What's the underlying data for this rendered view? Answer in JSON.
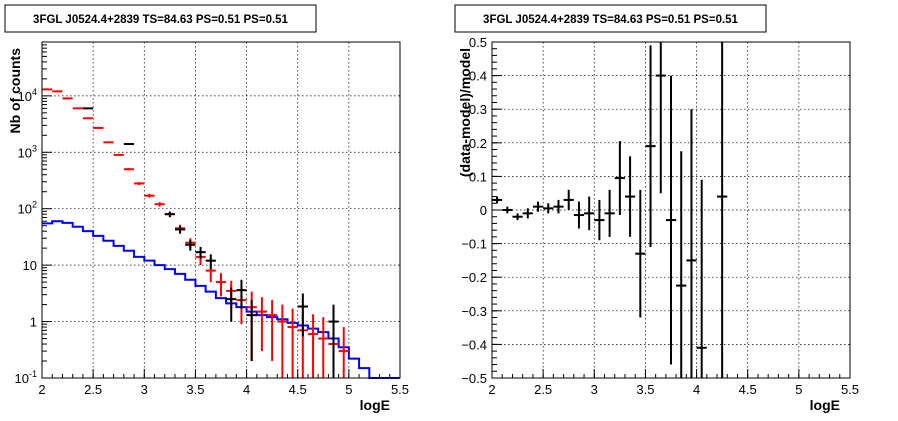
{
  "chart_data": [
    {
      "type": "histogram",
      "title": "3FGL J0524.4+2839 TS=84.63 PS=0.51 PS=0.51",
      "xlabel": "logE",
      "ylabel": "Nb of counts",
      "xlim": [
        2,
        5.5
      ],
      "ylim": [
        0.1,
        90000
      ],
      "ylog": true,
      "grid": true,
      "x_ticks": [
        "2",
        "2.5",
        "3",
        "3.5",
        "4",
        "4.5",
        "5",
        "5.5"
      ],
      "y_ticks": [
        {
          "value": 0.1,
          "label": "10^-1"
        },
        {
          "value": 1,
          "label": "1"
        },
        {
          "value": 10,
          "label": "10"
        },
        {
          "value": 100,
          "label": "10^2"
        },
        {
          "value": 1000,
          "label": "10^3"
        },
        {
          "value": 10000,
          "label": "10^4"
        }
      ],
      "x_bin_edges": [
        2.0,
        2.1,
        2.2,
        2.3,
        2.4,
        2.5,
        2.6,
        2.7,
        2.8,
        2.9,
        3.0,
        3.1,
        3.2,
        3.3,
        3.4,
        3.5,
        3.6,
        3.7,
        3.8,
        3.9,
        4.0,
        4.1,
        4.2,
        4.3,
        4.4,
        4.5,
        4.6,
        4.7,
        4.8,
        4.9,
        5.0,
        5.1,
        5.2,
        5.3,
        5.4,
        5.5
      ],
      "series": [
        {
          "color": "#0000ff",
          "style": "step",
          "values": [
            55,
            60,
            56,
            48,
            40,
            33,
            27,
            22,
            18,
            14,
            12,
            10,
            8.5,
            7,
            5.5,
            4.3,
            3.4,
            2.6,
            2.1,
            1.8,
            1.5,
            1.3,
            1.2,
            1.1,
            0.95,
            0.85,
            0.75,
            0.65,
            0.5,
            0.35,
            0.22,
            0.15,
            0.1,
            0.1,
            0.1
          ]
        },
        {
          "color": "#ff0000",
          "style": "errorbar",
          "x": [
            2.05,
            2.15,
            2.25,
            2.35,
            2.45,
            2.55,
            2.65,
            2.75,
            2.85,
            2.95,
            3.05,
            3.15,
            3.25,
            3.35,
            3.45,
            3.55,
            3.65,
            3.75,
            3.85,
            3.95,
            4.05,
            4.15,
            4.25,
            4.35,
            4.45,
            4.55,
            4.65,
            4.75,
            4.85,
            4.95
          ],
          "y": [
            13000,
            12000,
            9000,
            6000,
            4000,
            2700,
            1500,
            900,
            500,
            280,
            170,
            120,
            80,
            45,
            25,
            14,
            8,
            5,
            3.5,
            2.4,
            1.8,
            1.5,
            1.3,
            1.0,
            0.8,
            0.7,
            0.6,
            0.5,
            0.4,
            0.3
          ],
          "yerr": [
            110,
            110,
            95,
            77,
            63,
            52,
            39,
            30,
            22,
            17,
            13,
            11,
            9,
            7,
            5,
            4,
            3,
            2.2,
            1.8,
            1.5,
            1.6,
            1.2,
            1.1,
            1.0,
            0.9,
            0.8,
            0.75,
            0.7,
            0.6,
            0.5
          ]
        },
        {
          "color": "#000000",
          "style": "errorbar",
          "x": [
            2.45,
            2.85,
            3.25,
            3.35,
            3.45,
            3.55,
            3.65,
            3.85,
            3.95,
            4.05,
            4.55,
            4.85
          ],
          "y": [
            6000,
            1400,
            80,
            43,
            23,
            17,
            12,
            2.5,
            3.6,
            1.3,
            1.85,
            1.0
          ],
          "yerr": [
            80,
            37,
            9,
            7,
            5,
            4,
            3.5,
            1.5,
            1.9,
            1.1,
            1.3,
            1.0
          ]
        }
      ]
    },
    {
      "type": "scatter",
      "title": "3FGL J0524.4+2839 TS=84.63 PS=0.51 PS=0.51",
      "xlabel": "logE",
      "ylabel": "(data-model)/model",
      "xlim": [
        2,
        5.5
      ],
      "ylim": [
        -0.5,
        0.5
      ],
      "grid": true,
      "x_ticks": [
        "2",
        "2.5",
        "3",
        "3.5",
        "4",
        "4.5",
        "5",
        "5.5"
      ],
      "y_ticks": [
        "-0.5",
        "-0.4",
        "-0.3",
        "-0.2",
        "-0.1",
        "0",
        "0.1",
        "0.2",
        "0.3",
        "0.4",
        "0.5"
      ],
      "series": [
        {
          "color": "#000000",
          "style": "errorbar",
          "x": [
            2.05,
            2.15,
            2.25,
            2.35,
            2.45,
            2.55,
            2.65,
            2.75,
            2.85,
            2.95,
            3.05,
            3.15,
            3.25,
            3.35,
            3.45,
            3.55,
            3.65,
            3.75,
            3.85,
            3.95,
            4.05,
            4.25
          ],
          "y": [
            0.03,
            0.0,
            -0.02,
            -0.01,
            0.01,
            0.005,
            0.01,
            0.03,
            -0.015,
            -0.01,
            -0.03,
            -0.01,
            0.095,
            0.04,
            -0.13,
            0.19,
            0.4,
            -0.03,
            -0.225,
            -0.15,
            -0.41,
            0.04
          ],
          "yerr": [
            0.01,
            0.01,
            0.01,
            0.015,
            0.015,
            0.015,
            0.02,
            0.03,
            0.04,
            0.05,
            0.06,
            0.07,
            0.11,
            0.12,
            0.19,
            0.3,
            0.35,
            0.43,
            0.4,
            0.45,
            0.5,
            0.6
          ]
        }
      ]
    }
  ]
}
